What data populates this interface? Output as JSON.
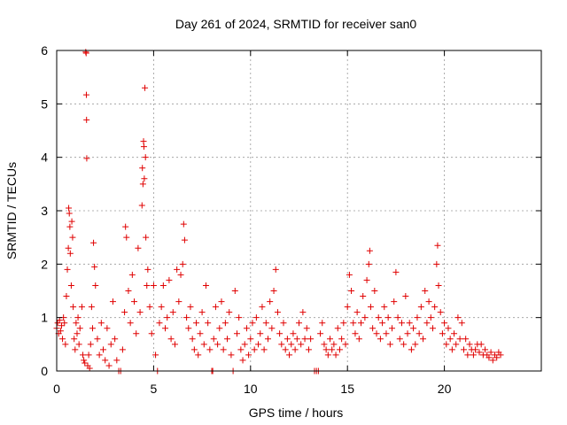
{
  "chart_data": {
    "type": "scatter",
    "title": "Day 261 of 2024, SRMTID for receiver san0",
    "xlabel": "GPS time / hours",
    "ylabel": "SRMTID / TECUs",
    "xlim": [
      0,
      25
    ],
    "ylim": [
      0,
      6
    ],
    "xticks": [
      0,
      5,
      10,
      15,
      20
    ],
    "yticks": [
      0,
      1,
      2,
      3,
      4,
      5,
      6
    ],
    "grid": true,
    "marker": "+",
    "marker_color": "#e00000",
    "series": [
      {
        "name": "SRMTID",
        "points": [
          [
            0.0,
            0.8
          ],
          [
            0.05,
            0.9
          ],
          [
            0.1,
            0.7
          ],
          [
            0.15,
            0.95
          ],
          [
            0.2,
            0.75
          ],
          [
            0.25,
            0.85
          ],
          [
            0.3,
            0.6
          ],
          [
            0.35,
            1.0
          ],
          [
            0.4,
            0.9
          ],
          [
            0.45,
            0.5
          ],
          [
            0.5,
            1.4
          ],
          [
            0.55,
            1.9
          ],
          [
            0.6,
            2.3
          ],
          [
            0.62,
            3.05
          ],
          [
            0.65,
            2.95
          ],
          [
            0.68,
            2.7
          ],
          [
            0.7,
            2.2
          ],
          [
            0.75,
            1.6
          ],
          [
            0.78,
            2.8
          ],
          [
            0.82,
            2.5
          ],
          [
            0.85,
            1.2
          ],
          [
            0.9,
            0.6
          ],
          [
            0.95,
            0.4
          ],
          [
            1.0,
            0.9
          ],
          [
            1.05,
            0.7
          ],
          [
            1.1,
            1.0
          ],
          [
            1.15,
            0.5
          ],
          [
            1.2,
            0.8
          ],
          [
            1.3,
            1.2
          ],
          [
            1.35,
            0.3
          ],
          [
            1.4,
            0.2
          ],
          [
            1.45,
            0.15
          ],
          [
            1.5,
            5.97
          ],
          [
            1.52,
            5.95
          ],
          [
            1.53,
            5.17
          ],
          [
            1.54,
            4.7
          ],
          [
            1.55,
            3.98
          ],
          [
            1.6,
            0.1
          ],
          [
            1.65,
            0.3
          ],
          [
            1.7,
            0.05
          ],
          [
            1.75,
            0.5
          ],
          [
            1.8,
            1.2
          ],
          [
            1.85,
            0.8
          ],
          [
            1.9,
            2.4
          ],
          [
            1.95,
            1.95
          ],
          [
            2.0,
            1.6
          ],
          [
            2.1,
            0.6
          ],
          [
            2.2,
            0.3
          ],
          [
            2.3,
            0.9
          ],
          [
            2.4,
            0.4
          ],
          [
            2.5,
            0.2
          ],
          [
            2.6,
            0.8
          ],
          [
            2.7,
            0.1
          ],
          [
            2.8,
            0.5
          ],
          [
            2.9,
            1.3
          ],
          [
            3.0,
            0.6
          ],
          [
            3.1,
            0.2
          ],
          [
            3.2,
            0.0
          ],
          [
            3.3,
            0.0
          ],
          [
            3.4,
            0.4
          ],
          [
            3.5,
            1.1
          ],
          [
            3.55,
            2.7
          ],
          [
            3.6,
            2.5
          ],
          [
            3.7,
            1.5
          ],
          [
            3.8,
            0.9
          ],
          [
            3.9,
            1.8
          ],
          [
            4.0,
            1.3
          ],
          [
            4.1,
            0.7
          ],
          [
            4.2,
            2.3
          ],
          [
            4.3,
            1.1
          ],
          [
            4.4,
            3.1
          ],
          [
            4.42,
            3.8
          ],
          [
            4.45,
            3.5
          ],
          [
            4.48,
            4.3
          ],
          [
            4.5,
            4.2
          ],
          [
            4.52,
            3.6
          ],
          [
            4.55,
            5.3
          ],
          [
            4.58,
            4.0
          ],
          [
            4.6,
            2.5
          ],
          [
            4.65,
            1.6
          ],
          [
            4.7,
            1.9
          ],
          [
            4.8,
            1.2
          ],
          [
            4.9,
            0.7
          ],
          [
            5.0,
            1.6
          ],
          [
            5.1,
            0.3
          ],
          [
            5.2,
            0.0
          ],
          [
            5.3,
            0.9
          ],
          [
            5.4,
            1.2
          ],
          [
            5.5,
            1.6
          ],
          [
            5.6,
            0.8
          ],
          [
            5.7,
            1.0
          ],
          [
            5.8,
            1.7
          ],
          [
            5.9,
            0.6
          ],
          [
            6.0,
            1.1
          ],
          [
            6.1,
            0.5
          ],
          [
            6.2,
            1.9
          ],
          [
            6.3,
            1.3
          ],
          [
            6.4,
            1.8
          ],
          [
            6.5,
            2.0
          ],
          [
            6.55,
            2.75
          ],
          [
            6.6,
            2.45
          ],
          [
            6.7,
            1.0
          ],
          [
            6.8,
            0.8
          ],
          [
            6.9,
            1.2
          ],
          [
            7.0,
            0.6
          ],
          [
            7.1,
            0.4
          ],
          [
            7.2,
            0.9
          ],
          [
            7.3,
            0.3
          ],
          [
            7.4,
            0.7
          ],
          [
            7.5,
            1.1
          ],
          [
            7.6,
            0.5
          ],
          [
            7.7,
            1.6
          ],
          [
            7.8,
            0.9
          ],
          [
            7.9,
            0.4
          ],
          [
            8.0,
            0.0
          ],
          [
            8.05,
            0.0
          ],
          [
            8.1,
            0.6
          ],
          [
            8.2,
            1.2
          ],
          [
            8.3,
            0.5
          ],
          [
            8.4,
            0.8
          ],
          [
            8.5,
            1.3
          ],
          [
            8.6,
            0.4
          ],
          [
            8.7,
            0.9
          ],
          [
            8.8,
            0.6
          ],
          [
            8.9,
            1.1
          ],
          [
            9.0,
            0.3
          ],
          [
            9.1,
            0.0
          ],
          [
            9.2,
            1.5
          ],
          [
            9.3,
            0.7
          ],
          [
            9.4,
            1.0
          ],
          [
            9.5,
            0.4
          ],
          [
            9.6,
            0.2
          ],
          [
            9.7,
            0.5
          ],
          [
            9.8,
            0.8
          ],
          [
            9.9,
            0.3
          ],
          [
            10.0,
            0.6
          ],
          [
            10.1,
            0.9
          ],
          [
            10.2,
            0.4
          ],
          [
            10.3,
            1.0
          ],
          [
            10.4,
            0.5
          ],
          [
            10.5,
            0.7
          ],
          [
            10.6,
            1.2
          ],
          [
            10.7,
            0.4
          ],
          [
            10.8,
            0.9
          ],
          [
            10.9,
            0.6
          ],
          [
            11.0,
            1.3
          ],
          [
            11.1,
            0.8
          ],
          [
            11.2,
            1.5
          ],
          [
            11.3,
            1.9
          ],
          [
            11.4,
            1.1
          ],
          [
            11.5,
            0.7
          ],
          [
            11.6,
            0.5
          ],
          [
            11.7,
            0.9
          ],
          [
            11.8,
            0.4
          ],
          [
            11.9,
            0.6
          ],
          [
            12.0,
            0.3
          ],
          [
            12.1,
            0.5
          ],
          [
            12.2,
            0.7
          ],
          [
            12.3,
            0.4
          ],
          [
            12.4,
            0.6
          ],
          [
            12.5,
            0.9
          ],
          [
            12.6,
            0.5
          ],
          [
            12.7,
            1.1
          ],
          [
            12.8,
            0.6
          ],
          [
            12.9,
            0.8
          ],
          [
            13.0,
            0.4
          ],
          [
            13.1,
            0.6
          ],
          [
            13.3,
            0.0
          ],
          [
            13.4,
            0.0
          ],
          [
            13.5,
            0.0
          ],
          [
            13.6,
            0.7
          ],
          [
            13.7,
            0.9
          ],
          [
            13.8,
            0.5
          ],
          [
            13.9,
            0.4
          ],
          [
            14.0,
            0.3
          ],
          [
            14.1,
            0.6
          ],
          [
            14.2,
            0.4
          ],
          [
            14.3,
            0.5
          ],
          [
            14.4,
            0.3
          ],
          [
            14.5,
            0.8
          ],
          [
            14.6,
            0.4
          ],
          [
            14.7,
            0.6
          ],
          [
            14.8,
            0.9
          ],
          [
            14.9,
            0.5
          ],
          [
            15.0,
            1.2
          ],
          [
            15.1,
            1.8
          ],
          [
            15.2,
            1.5
          ],
          [
            15.3,
            0.9
          ],
          [
            15.4,
            0.7
          ],
          [
            15.5,
            1.1
          ],
          [
            15.6,
            0.6
          ],
          [
            15.7,
            0.9
          ],
          [
            15.8,
            1.4
          ],
          [
            15.9,
            1.0
          ],
          [
            16.0,
            1.7
          ],
          [
            16.1,
            2.0
          ],
          [
            16.15,
            2.25
          ],
          [
            16.2,
            1.2
          ],
          [
            16.3,
            0.8
          ],
          [
            16.4,
            1.5
          ],
          [
            16.5,
            0.7
          ],
          [
            16.6,
            1.0
          ],
          [
            16.7,
            0.6
          ],
          [
            16.8,
            0.9
          ],
          [
            16.9,
            1.2
          ],
          [
            17.0,
            0.7
          ],
          [
            17.1,
            1.0
          ],
          [
            17.2,
            0.5
          ],
          [
            17.3,
            0.8
          ],
          [
            17.4,
            1.3
          ],
          [
            17.5,
            1.85
          ],
          [
            17.6,
            1.0
          ],
          [
            17.7,
            0.6
          ],
          [
            17.8,
            0.9
          ],
          [
            17.9,
            0.5
          ],
          [
            18.0,
            1.4
          ],
          [
            18.1,
            0.7
          ],
          [
            18.2,
            0.9
          ],
          [
            18.3,
            0.4
          ],
          [
            18.4,
            0.8
          ],
          [
            18.5,
            0.5
          ],
          [
            18.6,
            1.0
          ],
          [
            18.7,
            0.7
          ],
          [
            18.8,
            1.2
          ],
          [
            18.9,
            0.6
          ],
          [
            19.0,
            1.5
          ],
          [
            19.1,
            0.9
          ],
          [
            19.2,
            1.3
          ],
          [
            19.3,
            1.0
          ],
          [
            19.4,
            0.8
          ],
          [
            19.5,
            1.2
          ],
          [
            19.6,
            2.0
          ],
          [
            19.65,
            2.35
          ],
          [
            19.7,
            1.6
          ],
          [
            19.8,
            1.1
          ],
          [
            19.9,
            0.7
          ],
          [
            20.0,
            0.9
          ],
          [
            20.1,
            0.5
          ],
          [
            20.2,
            0.8
          ],
          [
            20.3,
            0.6
          ],
          [
            20.4,
            0.4
          ],
          [
            20.5,
            0.7
          ],
          [
            20.6,
            0.5
          ],
          [
            20.7,
            1.0
          ],
          [
            20.8,
            0.6
          ],
          [
            20.9,
            0.9
          ],
          [
            21.0,
            0.4
          ],
          [
            21.1,
            0.6
          ],
          [
            21.2,
            0.3
          ],
          [
            21.3,
            0.5
          ],
          [
            21.4,
            0.4
          ],
          [
            21.5,
            0.3
          ],
          [
            21.6,
            0.4
          ],
          [
            21.7,
            0.5
          ],
          [
            21.8,
            0.35
          ],
          [
            21.9,
            0.5
          ],
          [
            22.0,
            0.3
          ],
          [
            22.1,
            0.4
          ],
          [
            22.2,
            0.3
          ],
          [
            22.3,
            0.25
          ],
          [
            22.4,
            0.35
          ],
          [
            22.5,
            0.2
          ],
          [
            22.6,
            0.3
          ],
          [
            22.7,
            0.25
          ],
          [
            22.8,
            0.35
          ],
          [
            22.9,
            0.3
          ]
        ]
      }
    ]
  }
}
